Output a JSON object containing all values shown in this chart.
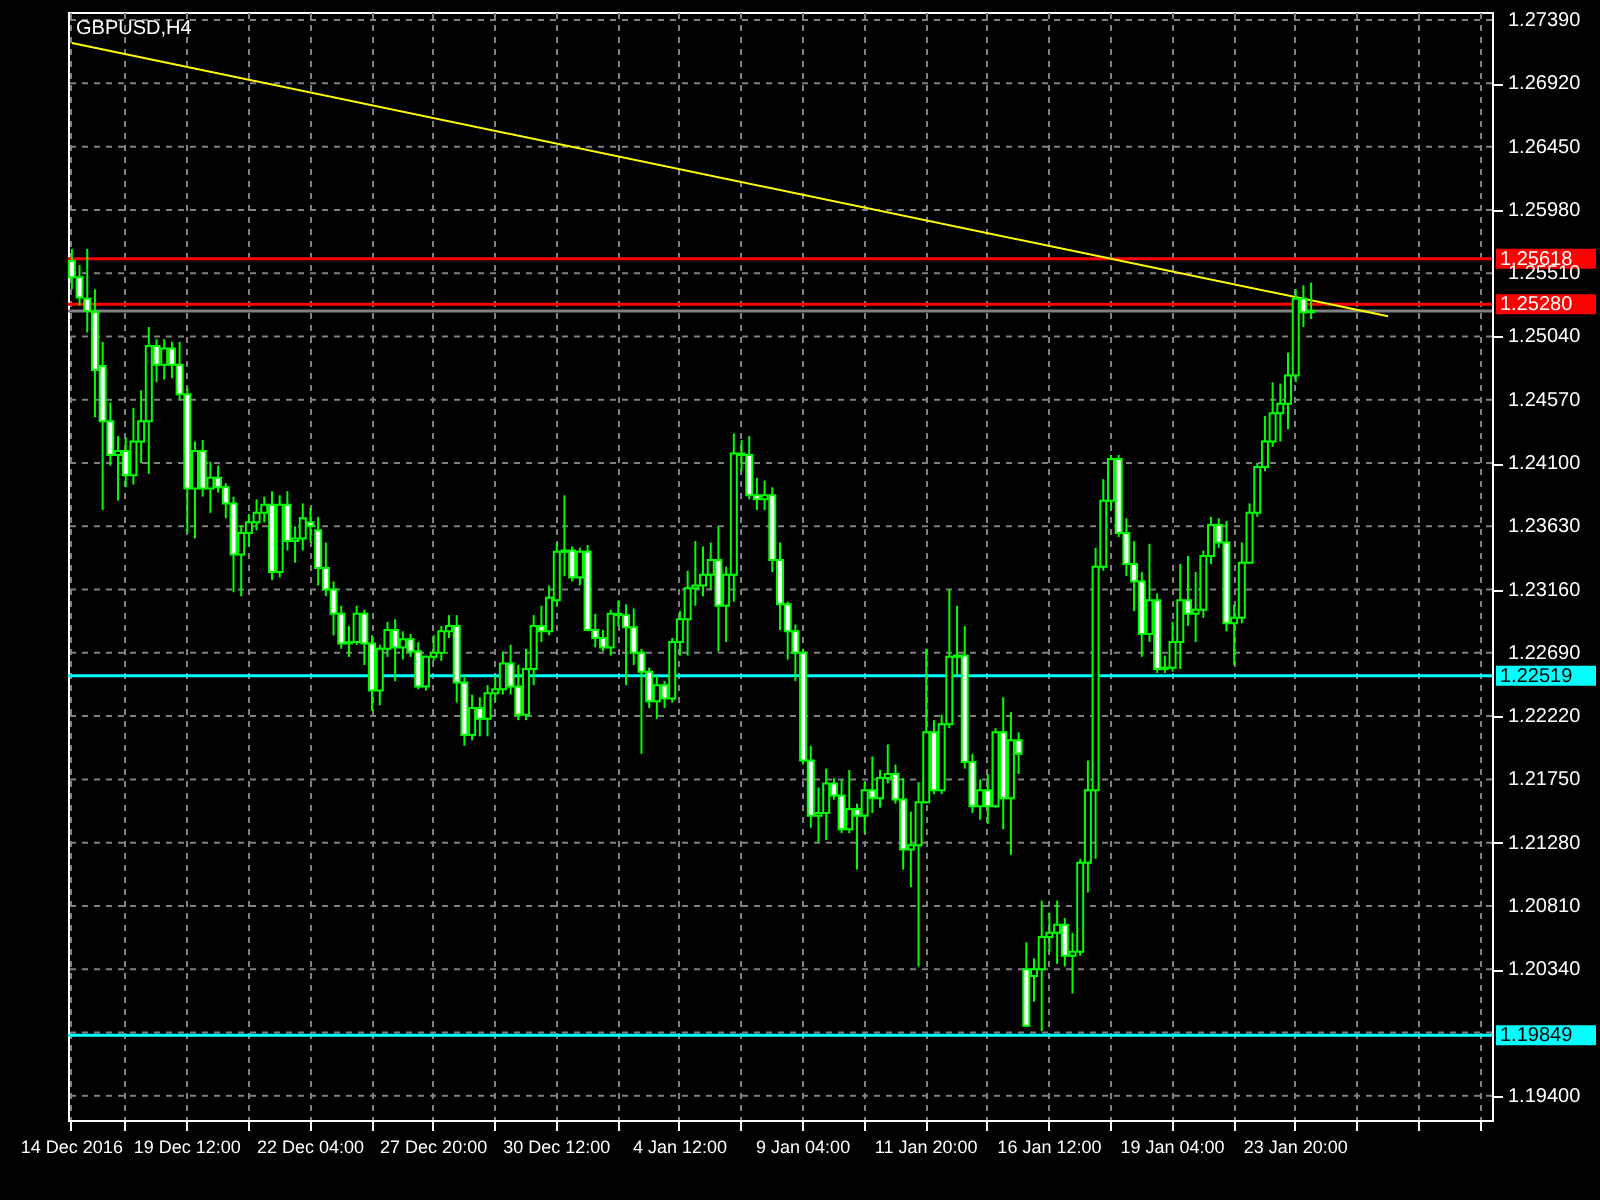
{
  "chart_data": {
    "type": "candlestick",
    "title": "GBPUSD,H4",
    "categories": [
      "14 Dec 2016",
      null,
      null,
      null,
      null,
      null,
      null,
      null,
      null,
      null,
      null,
      null,
      null,
      null,
      null,
      "19 Dec 12:00",
      null,
      null,
      null,
      null,
      null,
      null,
      null,
      null,
      null,
      null,
      null,
      null,
      null,
      null,
      null,
      "22 Dec 04:00",
      null,
      null,
      null,
      null,
      null,
      null,
      null,
      null,
      null,
      null,
      null,
      null,
      null,
      null,
      null,
      "27 Dec 20:00",
      null,
      null,
      null,
      null,
      null,
      null,
      null,
      null,
      null,
      null,
      null,
      null,
      null,
      null,
      null,
      "30 Dec 12:00",
      null,
      null,
      null,
      null,
      null,
      null,
      null,
      null,
      null,
      null,
      null,
      null,
      null,
      null,
      null,
      "4 Jan 12:00",
      null,
      null,
      null,
      null,
      null,
      null,
      null,
      null,
      null,
      null,
      null,
      null,
      null,
      null,
      null,
      "9 Jan 04:00",
      null,
      null,
      null,
      null,
      null,
      null,
      null,
      null,
      null,
      null,
      null,
      null,
      null,
      null,
      null,
      "11 Jan 20:00",
      null,
      null,
      null,
      null,
      null,
      null,
      null,
      null,
      null,
      null,
      null,
      null,
      null,
      null,
      null,
      "16 Jan 12:00",
      null,
      null,
      null,
      null,
      null,
      null,
      null,
      null,
      null,
      null,
      null,
      null,
      null,
      null,
      null,
      "19 Jan 04:00",
      null,
      null,
      null,
      null,
      null,
      null,
      null,
      null,
      null,
      null,
      null,
      null,
      null,
      null,
      null,
      "23 Jan 20:00",
      null,
      null,
      null,
      null,
      null,
      null,
      null,
      null,
      null,
      null,
      null,
      null,
      null,
      null,
      null,
      null,
      null,
      null,
      null,
      null,
      null,
      null,
      null,
      null,
      null
    ],
    "series": [
      {
        "type": "candlestick",
        "color": "#00ff00",
        "ohlc": [
          [
            1.256,
            1.2569,
            1.2539,
            1.2548
          ],
          [
            1.2548,
            1.2557,
            1.2527,
            1.2533
          ],
          [
            1.2532,
            1.2569,
            1.2507,
            1.2523
          ],
          [
            1.2522,
            1.2539,
            1.2444,
            1.2479
          ],
          [
            1.2482,
            1.25,
            1.2375,
            1.2441
          ],
          [
            1.2441,
            1.2455,
            1.2408,
            1.2416
          ],
          [
            1.2416,
            1.243,
            1.2382,
            1.2419
          ],
          [
            1.2419,
            1.2429,
            1.2392,
            1.2401
          ],
          [
            1.2401,
            1.2451,
            1.2394,
            1.2426
          ],
          [
            1.2426,
            1.2464,
            1.241,
            1.2441
          ],
          [
            1.2441,
            1.2511,
            1.2402,
            1.2497
          ],
          [
            1.2497,
            1.2502,
            1.247,
            1.2483
          ],
          [
            1.2483,
            1.2502,
            1.2472,
            1.2495
          ],
          [
            1.2495,
            1.25,
            1.2473,
            1.2483
          ],
          [
            1.2483,
            1.25,
            1.2457,
            1.2461
          ],
          [
            1.2461,
            1.2466,
            1.2358,
            1.2391
          ],
          [
            1.2391,
            1.2426,
            1.2354,
            1.2419
          ],
          [
            1.2419,
            1.2427,
            1.2385,
            1.2391
          ],
          [
            1.2391,
            1.2411,
            1.2373,
            1.2399
          ],
          [
            1.2399,
            1.2408,
            1.2388,
            1.2392
          ],
          [
            1.2392,
            1.2395,
            1.2369,
            1.238
          ],
          [
            1.238,
            1.2385,
            1.2314,
            1.2342
          ],
          [
            1.2342,
            1.2364,
            1.2311,
            1.2358
          ],
          [
            1.2358,
            1.2372,
            1.2348,
            1.2366
          ],
          [
            1.2366,
            1.2383,
            1.236,
            1.2373
          ],
          [
            1.2373,
            1.2385,
            1.2366,
            1.2379
          ],
          [
            1.2379,
            1.2389,
            1.2323,
            1.2329
          ],
          [
            1.2329,
            1.2386,
            1.2325,
            1.2379
          ],
          [
            1.2379,
            1.2389,
            1.2345,
            1.2352
          ],
          [
            1.2352,
            1.2363,
            1.2336,
            1.2354
          ],
          [
            1.2354,
            1.238,
            1.2345,
            1.2369
          ],
          [
            1.2366,
            1.2377,
            1.2351,
            1.2363
          ],
          [
            1.236,
            1.237,
            1.2319,
            1.2332
          ],
          [
            1.2332,
            1.2351,
            1.2311,
            1.2316
          ],
          [
            1.2316,
            1.2322,
            1.2282,
            1.2298
          ],
          [
            1.2298,
            1.2304,
            1.2272,
            1.2276
          ],
          [
            1.2276,
            1.2289,
            1.2266,
            1.2277
          ],
          [
            1.2277,
            1.2304,
            1.2275,
            1.2298
          ],
          [
            1.2298,
            1.2301,
            1.226,
            1.2276
          ],
          [
            1.2276,
            1.2282,
            1.2226,
            1.2241
          ],
          [
            1.2241,
            1.2275,
            1.223,
            1.2272
          ],
          [
            1.2272,
            1.2292,
            1.2266,
            1.2286
          ],
          [
            1.2286,
            1.2294,
            1.2248,
            1.2273
          ],
          [
            1.2273,
            1.2285,
            1.2264,
            1.2279
          ],
          [
            1.2279,
            1.2283,
            1.2266,
            1.227
          ],
          [
            1.227,
            1.2277,
            1.2242,
            1.2244
          ],
          [
            1.2244,
            1.2267,
            1.2241,
            1.2266
          ],
          [
            1.2266,
            1.2282,
            1.2263,
            1.2269
          ],
          [
            1.2269,
            1.2289,
            1.2263,
            1.2285
          ],
          [
            1.2285,
            1.2297,
            1.228,
            1.2289
          ],
          [
            1.2289,
            1.2297,
            1.2232,
            1.2247
          ],
          [
            1.2247,
            1.2252,
            1.22,
            1.2208
          ],
          [
            1.2208,
            1.2238,
            1.2204,
            1.2228
          ],
          [
            1.2228,
            1.2236,
            1.2207,
            1.222
          ],
          [
            1.222,
            1.2245,
            1.2207,
            1.2239
          ],
          [
            1.2239,
            1.2252,
            1.2233,
            1.2242
          ],
          [
            1.2242,
            1.227,
            1.2238,
            1.2261
          ],
          [
            1.2261,
            1.2275,
            1.2238,
            1.2244
          ],
          [
            1.2244,
            1.226,
            1.2219,
            1.2223
          ],
          [
            1.2223,
            1.2272,
            1.2219,
            1.2257
          ],
          [
            1.2257,
            1.2297,
            1.2245,
            1.2289
          ],
          [
            1.2289,
            1.2304,
            1.2277,
            1.2285
          ],
          [
            1.2285,
            1.2319,
            1.2282,
            1.231
          ],
          [
            1.2308,
            1.2351,
            1.2304,
            1.2344
          ],
          [
            1.2344,
            1.2386,
            1.2326,
            1.2345
          ],
          [
            1.2345,
            1.2348,
            1.2322,
            1.2325
          ],
          [
            1.2325,
            1.2347,
            1.2319,
            1.2344
          ],
          [
            1.2344,
            1.2349,
            1.2285,
            1.2286
          ],
          [
            1.2286,
            1.2298,
            1.2273,
            1.228
          ],
          [
            1.228,
            1.2286,
            1.227,
            1.2273
          ],
          [
            1.2273,
            1.2301,
            1.2267,
            1.2298
          ],
          [
            1.2298,
            1.2308,
            1.2289,
            1.2297
          ],
          [
            1.2297,
            1.2305,
            1.2245,
            1.2288
          ],
          [
            1.2288,
            1.2302,
            1.226,
            1.2269
          ],
          [
            1.2269,
            1.2272,
            1.2194,
            1.2255
          ],
          [
            1.2255,
            1.2258,
            1.2228,
            1.2233
          ],
          [
            1.2233,
            1.2252,
            1.222,
            1.2245
          ],
          [
            1.2245,
            1.2248,
            1.2228,
            1.2235
          ],
          [
            1.2235,
            1.228,
            1.2232,
            1.2277
          ],
          [
            1.2277,
            1.23,
            1.2267,
            1.2294
          ],
          [
            1.2294,
            1.233,
            1.2267,
            1.2317
          ],
          [
            1.2317,
            1.2352,
            1.2304,
            1.2319
          ],
          [
            1.2319,
            1.2348,
            1.2311,
            1.2327
          ],
          [
            1.2327,
            1.2351,
            1.2316,
            1.2338
          ],
          [
            1.2338,
            1.2363,
            1.227,
            1.2304
          ],
          [
            1.2304,
            1.2333,
            1.2277,
            1.2327
          ],
          [
            1.2327,
            1.2432,
            1.2307,
            1.2417
          ],
          [
            1.2417,
            1.2427,
            1.2404,
            1.2416
          ],
          [
            1.2416,
            1.243,
            1.2383,
            1.2386
          ],
          [
            1.2386,
            1.2399,
            1.2375,
            1.2383
          ],
          [
            1.2383,
            1.2397,
            1.2375,
            1.2386
          ],
          [
            1.2386,
            1.2392,
            1.2329,
            1.2338
          ],
          [
            1.2338,
            1.2351,
            1.2286,
            1.2305
          ],
          [
            1.2305,
            1.2307,
            1.2264,
            1.2285
          ],
          [
            1.2285,
            1.229,
            1.2248,
            1.2269
          ],
          [
            1.2269,
            1.2272,
            1.2186,
            1.2189
          ],
          [
            1.2189,
            1.22,
            1.2139,
            1.2148
          ],
          [
            1.2148,
            1.2169,
            1.2128,
            1.215
          ],
          [
            1.215,
            1.2183,
            1.213,
            1.2172
          ],
          [
            1.2172,
            1.2176,
            1.216,
            1.2163
          ],
          [
            1.2163,
            1.2175,
            1.2135,
            1.2138
          ],
          [
            1.2138,
            1.2182,
            1.2135,
            1.2153
          ],
          [
            1.2153,
            1.2157,
            1.2108,
            1.2148
          ],
          [
            1.2148,
            1.2173,
            1.2135,
            1.2167
          ],
          [
            1.2167,
            1.2192,
            1.215,
            1.2161
          ],
          [
            1.2161,
            1.2182,
            1.2154,
            1.2176
          ],
          [
            1.2176,
            1.2201,
            1.2172,
            1.2179
          ],
          [
            1.2179,
            1.2186,
            1.2157,
            1.216
          ],
          [
            1.216,
            1.2176,
            1.2108,
            1.2123
          ],
          [
            1.2123,
            1.2151,
            1.2095,
            1.2126
          ],
          [
            1.2126,
            1.2173,
            1.2036,
            1.2158
          ],
          [
            1.2158,
            1.2272,
            1.2157,
            1.221
          ],
          [
            1.221,
            1.2219,
            1.2164,
            1.2167
          ],
          [
            1.2167,
            1.2223,
            1.2164,
            1.2216
          ],
          [
            1.2216,
            1.2316,
            1.2213,
            1.2266
          ],
          [
            1.2266,
            1.2304,
            1.2252,
            1.2267
          ],
          [
            1.2267,
            1.2289,
            1.2183,
            1.2188
          ],
          [
            1.2188,
            1.2194,
            1.215,
            1.2155
          ],
          [
            1.2155,
            1.2175,
            1.2145,
            1.2167
          ],
          [
            1.2167,
            1.2179,
            1.2142,
            1.2155
          ],
          [
            1.2155,
            1.2213,
            1.2154,
            1.221
          ],
          [
            1.221,
            1.2236,
            1.2138,
            1.2161
          ],
          [
            1.2161,
            1.2225,
            1.2119,
            1.2204
          ],
          [
            1.2204,
            1.221,
            1.2179,
            1.2194
          ],
          [
            1.2034,
            1.2054,
            1.1991,
            1.1992
          ],
          [
            1.2029,
            1.2042,
            1.201,
            1.2034
          ],
          [
            1.2034,
            1.2085,
            1.1988,
            1.2058
          ],
          [
            1.2058,
            1.2076,
            1.2047,
            1.2061
          ],
          [
            1.2061,
            1.2085,
            1.2038,
            1.2067
          ],
          [
            1.2067,
            1.2072,
            1.2036,
            1.2044
          ],
          [
            1.2044,
            1.2061,
            1.2016,
            1.2047
          ],
          [
            1.2047,
            1.2116,
            1.2044,
            1.2113
          ],
          [
            1.2113,
            1.2189,
            1.2091,
            1.2167
          ],
          [
            1.2167,
            1.2347,
            1.2116,
            1.2333
          ],
          [
            1.2333,
            1.2398,
            1.233,
            1.2382
          ],
          [
            1.2382,
            1.2416,
            1.2375,
            1.2413
          ],
          [
            1.2413,
            1.2416,
            1.2355,
            1.2358
          ],
          [
            1.2358,
            1.2369,
            1.2326,
            1.2335
          ],
          [
            1.2335,
            1.2352,
            1.23,
            1.2322
          ],
          [
            1.2322,
            1.2329,
            1.2266,
            1.2283
          ],
          [
            1.2283,
            1.235,
            1.2277,
            1.2308
          ],
          [
            1.2308,
            1.2313,
            1.2254,
            1.2257
          ],
          [
            1.2257,
            1.2267,
            1.2254,
            1.2258
          ],
          [
            1.2258,
            1.2292,
            1.2255,
            1.2277
          ],
          [
            1.2277,
            1.2335,
            1.2257,
            1.2308
          ],
          [
            1.2308,
            1.2341,
            1.2289,
            1.2298
          ],
          [
            1.2298,
            1.2329,
            1.2277,
            1.2301
          ],
          [
            1.2301,
            1.2345,
            1.2295,
            1.2341
          ],
          [
            1.2341,
            1.237,
            1.2335,
            1.2364
          ],
          [
            1.2364,
            1.2369,
            1.2347,
            1.2351
          ],
          [
            1.2351,
            1.2367,
            1.2285,
            1.2291
          ],
          [
            1.2291,
            1.2305,
            1.226,
            1.2295
          ],
          [
            1.2295,
            1.2351,
            1.2291,
            1.2336
          ],
          [
            1.2336,
            1.238,
            1.2336,
            1.2373
          ],
          [
            1.2373,
            1.241,
            1.237,
            1.2407
          ],
          [
            1.2407,
            1.2445,
            1.2404,
            1.2426
          ],
          [
            1.2426,
            1.247,
            1.2422,
            1.2447
          ],
          [
            1.2447,
            1.2469,
            1.2426,
            1.2454
          ],
          [
            1.2454,
            1.2492,
            1.2435,
            1.2475
          ],
          [
            1.2475,
            1.2539,
            1.247,
            1.2532
          ],
          [
            1.2532,
            1.2542,
            1.2511,
            1.2522
          ],
          [
            1.2522,
            1.2544,
            1.2517,
            1.2523
          ],
          null,
          null,
          null,
          null,
          null,
          null,
          null,
          null,
          null,
          null,
          null,
          null,
          null,
          null,
          null,
          null,
          null,
          null,
          null,
          null,
          null,
          null,
          null
        ]
      },
      {
        "type": "line",
        "color": "#ffff00",
        "values": [
          1.2722,
          null,
          null,
          null,
          null,
          null,
          null,
          null,
          null,
          null,
          null,
          null,
          null,
          null,
          null,
          null,
          null,
          null,
          null,
          null,
          null,
          null,
          null,
          null,
          null,
          null,
          null,
          null,
          null,
          null,
          null,
          null,
          null,
          null,
          null,
          null,
          null,
          null,
          null,
          null,
          null,
          null,
          null,
          null,
          null,
          null,
          null,
          null,
          null,
          null,
          null,
          null,
          null,
          null,
          null,
          null,
          null,
          null,
          null,
          null,
          null,
          null,
          null,
          null,
          null,
          null,
          null,
          null,
          null,
          null,
          null,
          null,
          null,
          null,
          null,
          null,
          null,
          null,
          null,
          null,
          null,
          null,
          null,
          null,
          null,
          null,
          null,
          null,
          null,
          null,
          null,
          null,
          null,
          null,
          null,
          null,
          null,
          null,
          null,
          null,
          null,
          null,
          null,
          null,
          null,
          null,
          null,
          null,
          null,
          null,
          null,
          null,
          null,
          null,
          null,
          null,
          null,
          null,
          null,
          null,
          null,
          null,
          null,
          null,
          null,
          null,
          null,
          null,
          null,
          null,
          null,
          null,
          null,
          null,
          null,
          null,
          null,
          null,
          null,
          null,
          null,
          null,
          null,
          null,
          null,
          null,
          null,
          null,
          null,
          null,
          null,
          null,
          null,
          null,
          null,
          null,
          null,
          null,
          null,
          null,
          null,
          null,
          null,
          null,
          null,
          null,
          null,
          null,
          null,
          null,
          null,
          1.2519,
          null,
          null,
          null,
          null,
          null,
          null,
          null,
          null,
          null,
          null,
          null,
          null,
          null
        ]
      }
    ],
    "ylim": [
      1.1922,
      1.2745
    ],
    "yticks": [
      {
        "value": 1.2739,
        "label": "1.27390"
      },
      {
        "value": 1.2692,
        "label": "1.26920"
      },
      {
        "value": 1.2645,
        "label": "1.26450"
      },
      {
        "value": 1.2598,
        "label": "1.25980"
      },
      {
        "value": 1.2551,
        "label": "1.25510"
      },
      {
        "value": 1.2504,
        "label": "1.25040"
      },
      {
        "value": 1.2457,
        "label": "1.24570"
      },
      {
        "value": 1.241,
        "label": "1.24100"
      },
      {
        "value": 1.2363,
        "label": "1.23630"
      },
      {
        "value": 1.2316,
        "label": "1.23160"
      },
      {
        "value": 1.2269,
        "label": "1.22690"
      },
      {
        "value": 1.2222,
        "label": "1.22220"
      },
      {
        "value": 1.2175,
        "label": "1.21750"
      },
      {
        "value": 1.2128,
        "label": "1.21280"
      },
      {
        "value": 1.2081,
        "label": "1.20810"
      },
      {
        "value": 1.2034,
        "label": "1.20340"
      },
      {
        "value": 1.1987,
        "label": null
      },
      {
        "value": 1.194,
        "label": "1.19400"
      }
    ],
    "ref_lines": [
      {
        "axis": "y",
        "value": 1.25618,
        "label": "1.25618",
        "color": "#ff0000"
      },
      {
        "axis": "y",
        "value": 1.2528,
        "label": "1.25280",
        "color": "#ff0000"
      },
      {
        "axis": "y",
        "value": 1.2523,
        "color": "#808080"
      },
      {
        "axis": "y",
        "value": 1.22519,
        "label": "1.22519",
        "color": "#00ffff"
      },
      {
        "axis": "y",
        "value": 1.19849,
        "label": "1.19849",
        "color": "#00ffff"
      }
    ],
    "grid": true
  }
}
